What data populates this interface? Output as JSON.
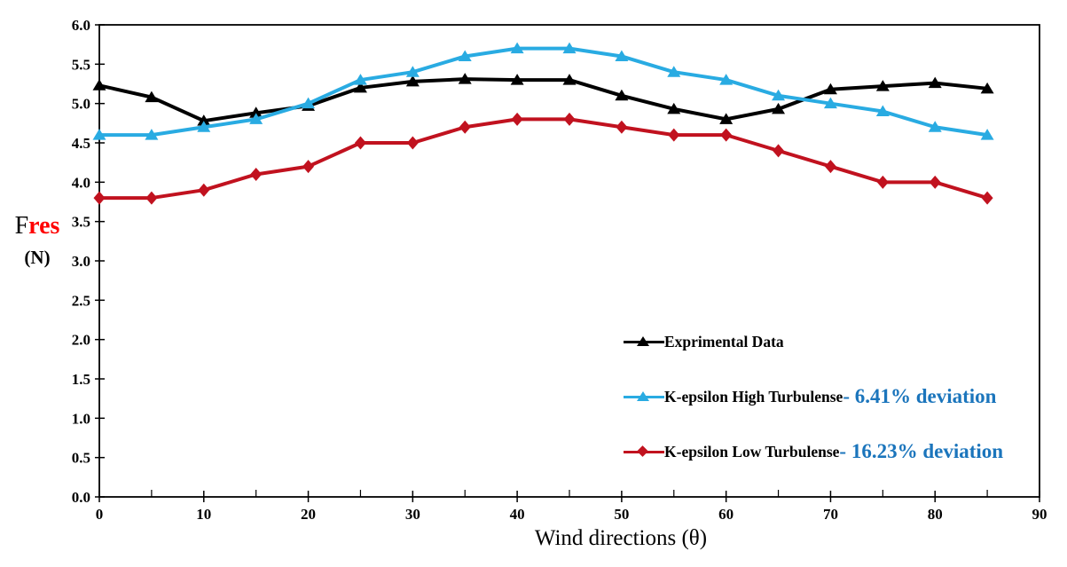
{
  "chart": {
    "y_axis_label": {
      "prefix": "F",
      "highlight": "res",
      "unit": "(N)"
    },
    "highlight_color": "#ff0000"
  },
  "chart_data": {
    "type": "line",
    "title": "",
    "xlabel": "Wind directions (θ)",
    "ylabel": "Fres (N)",
    "x": [
      0,
      5,
      10,
      15,
      20,
      25,
      30,
      35,
      40,
      45,
      50,
      55,
      60,
      65,
      70,
      75,
      80,
      85
    ],
    "xlim": [
      0,
      90
    ],
    "ylim": [
      0.0,
      6.0
    ],
    "x_tick_step_major": 10,
    "x_tick_step_minor": 5,
    "y_tick_step": 0.5,
    "grid": false,
    "legend_position": "inside-right-stacked",
    "deviation_text_color": "#1b75bc",
    "series": [
      {
        "name": "Exprimental Data",
        "color": "#000000",
        "marker": "triangle",
        "deviation_label": "",
        "values": [
          5.23,
          5.08,
          4.78,
          4.88,
          4.97,
          5.2,
          5.28,
          5.31,
          5.3,
          5.3,
          5.1,
          4.93,
          4.8,
          4.93,
          5.18,
          5.22,
          5.26,
          5.19
        ]
      },
      {
        "name": "K-epsilon High Turbulense",
        "color": "#29abe2",
        "marker": "triangle",
        "deviation_label": "- 6.41% deviation",
        "values": [
          4.6,
          4.6,
          4.7,
          4.8,
          5.0,
          5.3,
          5.4,
          5.6,
          5.7,
          5.7,
          5.6,
          5.4,
          5.3,
          5.1,
          5.0,
          4.9,
          4.7,
          4.6
        ]
      },
      {
        "name": "K-epsilon Low Turbulense",
        "color": "#c1121f",
        "marker": "diamond",
        "deviation_label": "- 16.23% deviation",
        "values": [
          3.8,
          3.8,
          3.9,
          4.1,
          4.2,
          4.5,
          4.5,
          4.7,
          4.8,
          4.8,
          4.7,
          4.6,
          4.6,
          4.4,
          4.2,
          4.0,
          4.0,
          3.8
        ]
      }
    ]
  }
}
